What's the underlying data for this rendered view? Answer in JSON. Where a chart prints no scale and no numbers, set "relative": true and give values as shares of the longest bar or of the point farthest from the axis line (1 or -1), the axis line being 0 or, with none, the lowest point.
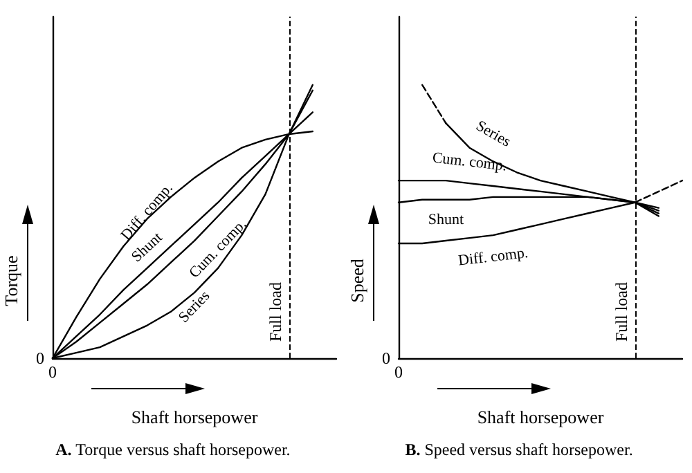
{
  "chart_data": [
    {
      "type": "line",
      "title": "A. Torque versus shaft horsepower.",
      "xlabel": "Shaft horsepower",
      "ylabel": "Torque",
      "relative": true,
      "annotations": [
        "0",
        "0"
      ],
      "marker": "none",
      "line_style": "solid",
      "categories": [
        null,
        null,
        null,
        null,
        null,
        null,
        null,
        null,
        null,
        null,
        null,
        null,
        null
      ],
      "ref_lines": [
        {
          "axis": "x",
          "label": "Full load",
          "line_style": "dashed"
        }
      ],
      "series": [
        {
          "name": "Diff. comp.",
          "color": "#000000",
          "values": [
            0,
            0.15,
            0.29,
            0.41,
            0.51,
            0.59,
            0.66,
            0.72,
            0.77,
            0.8,
            0.82,
            0.83,
            null
          ]
        },
        {
          "name": "Shunt",
          "color": "#000000",
          "values": [
            0,
            0.08,
            0.16,
            0.25,
            0.33,
            0.41,
            0.49,
            0.57,
            0.66,
            0.74,
            0.82,
            0.9,
            null
          ]
        },
        {
          "name": "Cum. comp.",
          "color": "#000000",
          "values": [
            0,
            0.06,
            0.13,
            0.2,
            0.27,
            0.35,
            0.43,
            0.52,
            0.61,
            0.71,
            0.82,
            0.98,
            null
          ]
        },
        {
          "name": "Series",
          "color": "#000000",
          "values": [
            0,
            0.02,
            0.04,
            0.08,
            0.12,
            0.17,
            0.24,
            0.33,
            0.45,
            0.6,
            0.82,
            1,
            null
          ]
        }
      ]
    },
    {
      "type": "line",
      "title": "B. Speed versus shaft horsepower.",
      "xlabel": "Shaft horsepower",
      "ylabel": "Speed",
      "relative": true,
      "annotations": [
        "0",
        "0"
      ],
      "marker": "none",
      "line_style": "solid",
      "categories": [
        null,
        null,
        null,
        null,
        null,
        null,
        null,
        null,
        null,
        null,
        null,
        null,
        null
      ],
      "ref_lines": [
        {
          "axis": "x",
          "label": "Full load",
          "line_style": "dashed"
        }
      ],
      "series": [
        {
          "name": "Series",
          "color": "#000000",
          "values": [
            null,
            null,
            0.86,
            0.77,
            0.72,
            0.68,
            0.65,
            0.63,
            0.61,
            0.59,
            0.57,
            0.55,
            null
          ]
        },
        {
          "color": "#000000",
          "line_style": "dashed",
          "values": [
            null,
            1,
            0.86,
            null,
            null,
            null,
            null,
            null,
            null,
            null,
            null,
            null,
            null
          ]
        },
        {
          "name": "Cum. comp.",
          "color": "#000000",
          "values": [
            0.65,
            0.65,
            0.65,
            0.64,
            0.63,
            0.62,
            0.61,
            0.6,
            0.59,
            0.58,
            0.57,
            0.54,
            null
          ]
        },
        {
          "name": "Shunt",
          "color": "#000000",
          "values": [
            0.57,
            0.58,
            0.58,
            0.58,
            0.59,
            0.59,
            0.59,
            0.59,
            0.59,
            0.58,
            0.57,
            0.52,
            null
          ]
        },
        {
          "name": "Diff. comp.",
          "color": "#000000",
          "values": [
            0.42,
            0.42,
            0.43,
            0.44,
            0.45,
            0.47,
            0.49,
            0.51,
            0.53,
            0.55,
            0.57,
            0.53,
            null
          ]
        },
        {
          "color": "#000000",
          "line_style": "dashed",
          "values": [
            null,
            null,
            null,
            null,
            null,
            null,
            null,
            null,
            null,
            null,
            0.57,
            0.61,
            0.65
          ]
        }
      ]
    }
  ]
}
